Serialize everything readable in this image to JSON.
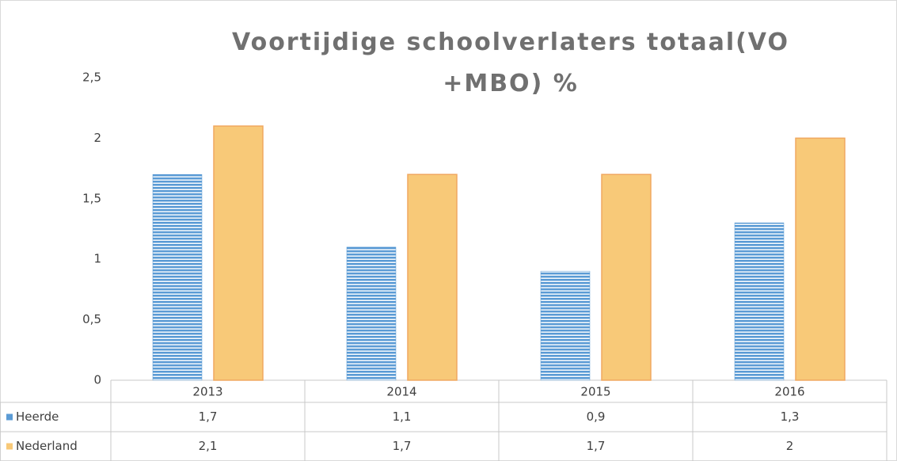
{
  "chart_data": {
    "type": "bar",
    "title": "Voortijdige schoolverlaters totaal(VO +MBO) %",
    "categories": [
      "2013",
      "2014",
      "2015",
      "2016"
    ],
    "series": [
      {
        "name": "Heerde",
        "color": "#5b9bd5",
        "values": [
          1.7,
          1.1,
          0.9,
          1.3
        ],
        "value_labels": [
          "1,7",
          "1,1",
          "0,9",
          "1,3"
        ]
      },
      {
        "name": "Nederland",
        "color": "#f8c978",
        "values": [
          2.1,
          1.7,
          1.7,
          2
        ],
        "value_labels": [
          "2,1",
          "1,7",
          "1,7",
          "2"
        ]
      }
    ],
    "ylim": [
      0,
      2.5
    ],
    "yticks": [
      0,
      {
        "value": 0.5,
        "label": "0,5"
      },
      1,
      {
        "value": 1.5,
        "label": "1,5"
      },
      2,
      {
        "value": 2.5,
        "label": "2,5"
      }
    ],
    "grid": false
  }
}
